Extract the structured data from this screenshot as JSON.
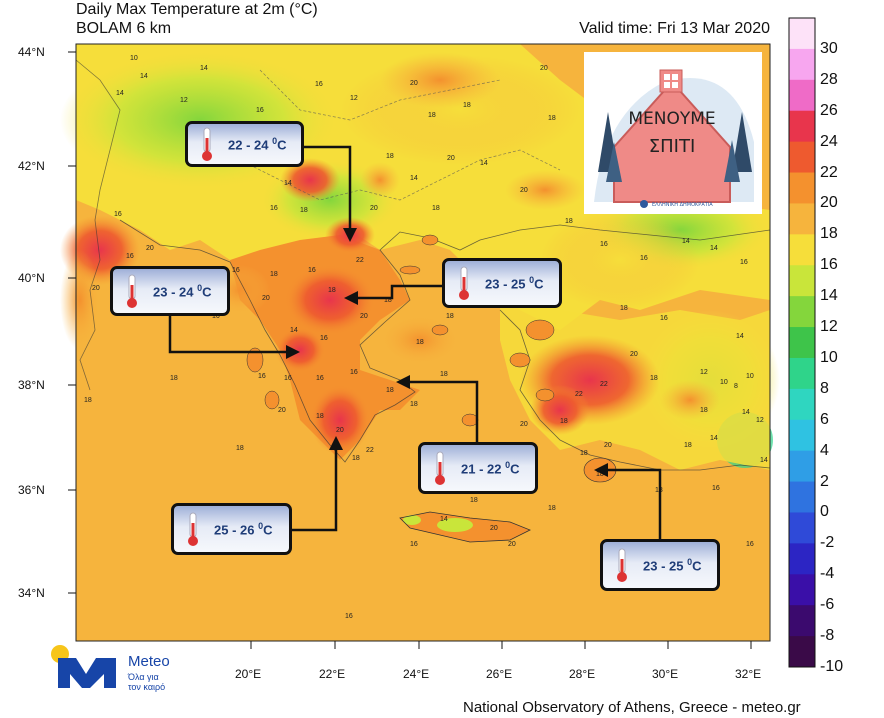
{
  "header": {
    "title": "Daily Max Temperature at 2m (°C)",
    "model": "BOLAM 6 km",
    "valid_time": "Valid time: Fri 13 Mar 2020"
  },
  "map_axes": {
    "lat_labels": [
      "44°N",
      "42°N",
      "40°N",
      "38°N",
      "36°N",
      "34°N"
    ],
    "lon_labels": [
      "20°E",
      "22°E",
      "24°E",
      "26°E",
      "28°E",
      "30°E",
      "32°E"
    ]
  },
  "colorbar": {
    "labels": [
      "30",
      "28",
      "26",
      "24",
      "22",
      "20",
      "18",
      "16",
      "14",
      "12",
      "10",
      "8",
      "6",
      "4",
      "2",
      "0",
      "-2",
      "-4",
      "-6",
      "-8",
      "-10"
    ],
    "colors": [
      "#fde2f8",
      "#f7a6ef",
      "#ef6bc7",
      "#e8354c",
      "#ee5a2f",
      "#f4912e",
      "#f6b43d",
      "#f6de3a",
      "#c9e53a",
      "#84d63c",
      "#3ec44a",
      "#2fd48a",
      "#2fd6c0",
      "#2fc2e2",
      "#2f9ee6",
      "#2f73e0",
      "#2f4ad8",
      "#2c25c4",
      "#3a0fa8",
      "#3b0a6e",
      "#3a0a48"
    ]
  },
  "callouts": [
    {
      "id": "north-macedonia",
      "text": "22 - 24",
      "unit": "C"
    },
    {
      "id": "west-greece",
      "text": "23 - 24",
      "unit": "C"
    },
    {
      "id": "thessaly",
      "text": "23 - 25",
      "unit": "C"
    },
    {
      "id": "attica",
      "text": "21 - 22",
      "unit": "C"
    },
    {
      "id": "peloponnese",
      "text": "25 - 26",
      "unit": "C"
    },
    {
      "id": "dodecanese",
      "text": "23 - 25",
      "unit": "C"
    }
  ],
  "map_values": [
    "10",
    "12",
    "14",
    "16",
    "18",
    "20",
    "22",
    "8"
  ],
  "inset_poster": {
    "slogan_line1": "ΜΕΝΟΥΜΕ",
    "slogan_line2": "ΣΠΙΤΙ",
    "caption": "ΕΛΛΗΝΙΚΗ ΔΗΜΟΚΡΑΤΙΑ"
  },
  "logo": {
    "brand": "Meteo",
    "tagline_line1": "Όλα για",
    "tagline_line2": "τον καιρό"
  },
  "footer": "National Observatory of Athens, Greece - meteo.gr"
}
